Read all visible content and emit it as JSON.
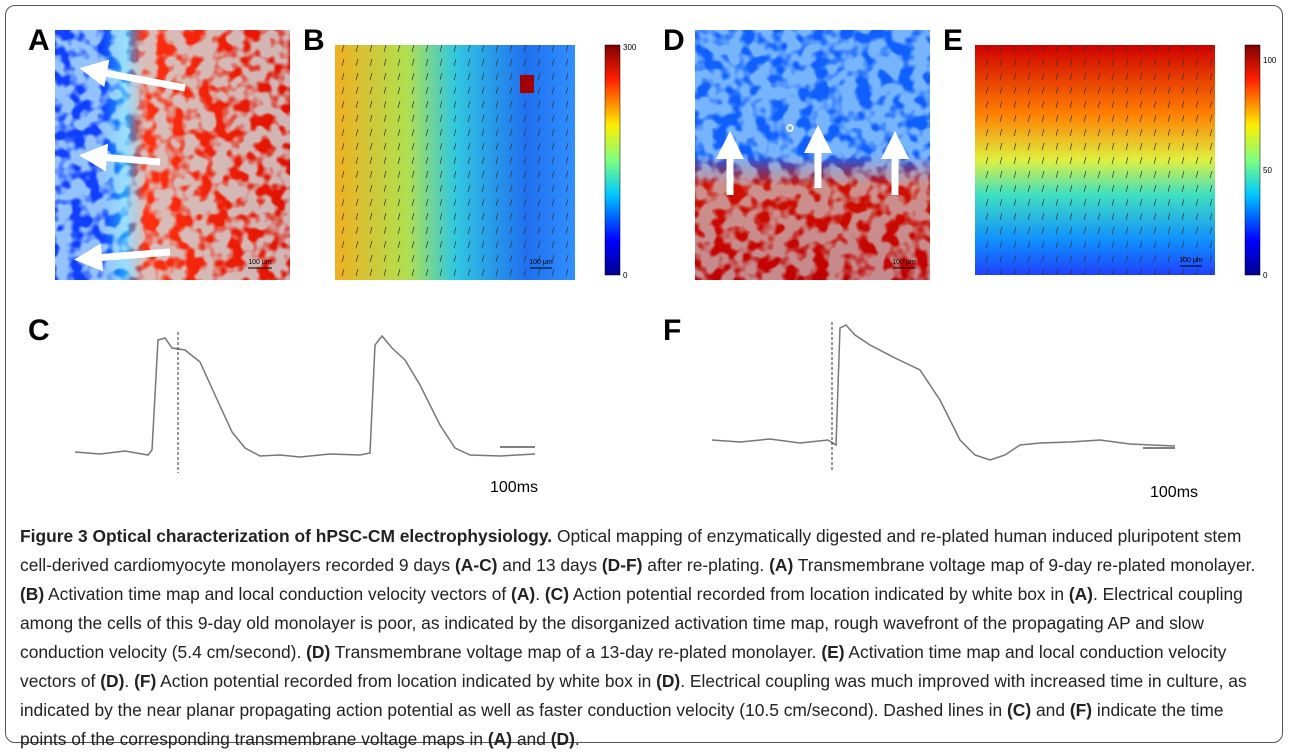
{
  "panels": {
    "a": {
      "letter": "A",
      "scale": "100 μm"
    },
    "b": {
      "letter": "B",
      "scale": "100 μm",
      "colorbar_top": "300",
      "colorbar_bottom": "0"
    },
    "c": {
      "letter": "C",
      "scale": "100ms"
    },
    "d": {
      "letter": "D",
      "scale": "100 μm"
    },
    "e": {
      "letter": "E",
      "scale": "100 μm",
      "colorbar_top": "100",
      "colorbar_mid": "50",
      "colorbar_bottom": "0"
    },
    "f": {
      "letter": "F",
      "scale": "100ms"
    }
  },
  "caption": [
    "Figure 3 Optical characterization of hPSC-CM electrophysiology.",
    " Optical mapping of enzymatically digested and re-plated human induced pluripotent stem cell-derived cardiomyocyte monolayers recorded 9 days ",
    "(A-C)",
    " and 13 days ",
    "(D-F)",
    " after re-plating. ",
    "(A)",
    " Transmembrane voltage map of 9-day re-plated monolayer. ",
    "(B)",
    " Activation time map and local conduction velocity vectors of ",
    "(A)",
    ". ",
    "(C)",
    " Action potential recorded from location indicated by white box in ",
    "(A)",
    ". Electrical coupling among the cells of this 9-day old monolayer is poor, as indicated by the disorganized activation time map, rough wavefront of the propagating AP and slow conduction velocity (5.4 cm/second). ",
    "(D)",
    " Transmembrane voltage map of a 13-day re-plated monolayer. ",
    "(E)",
    " Activation time map and local conduction velocity vectors of ",
    "(D)",
    ". ",
    "(F)",
    " Action potential recorded from location indicated by white box in ",
    "(D)",
    ". Electrical coupling was much improved with increased time in culture, as indicated by the near planar propagating action potential as well as faster conduction velocity (10.5 cm/second). Dashed lines in ",
    "(C)",
    " and ",
    "(F)",
    " indicate the time points of the corresponding transmembrane voltage maps in ",
    "(A)",
    " and ",
    "(D)",
    "."
  ]
}
